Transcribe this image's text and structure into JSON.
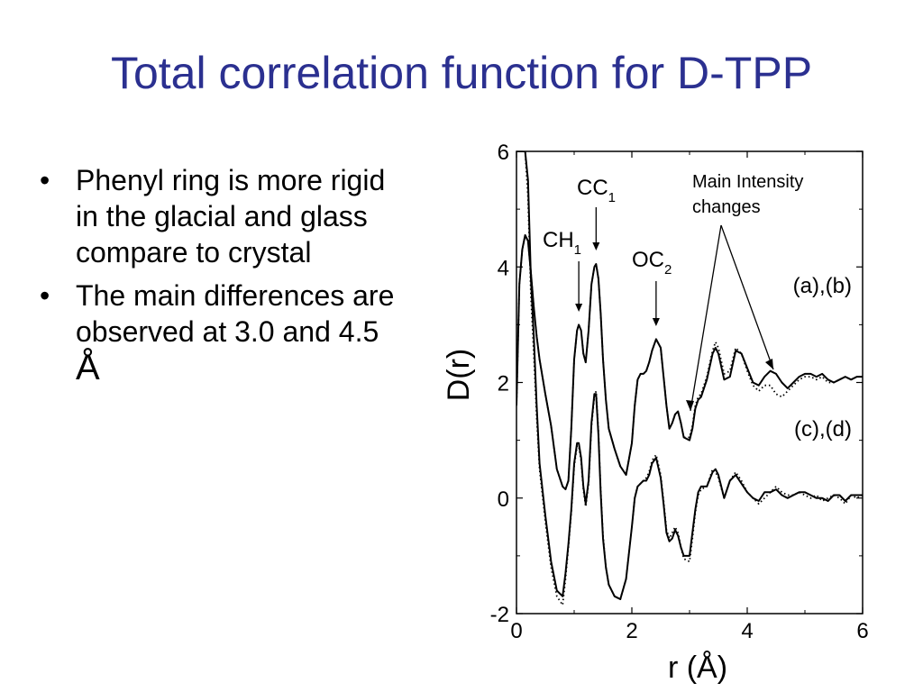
{
  "slide": {
    "title": "Total correlation function for D-TPP",
    "bullet_symbol": "•",
    "bullets": [
      {
        "text": "Phenyl ring is more rigid in the glacial and glass compare to crystal",
        "unit": ""
      },
      {
        "text": "The main differences are observed at 3.0 and 4.5 ",
        "unit": "Å"
      }
    ]
  },
  "chart_data": {
    "type": "line",
    "xlabel": "r (Å)",
    "ylabel": "D(r)",
    "xlim": [
      0,
      6
    ],
    "ylim": [
      -2,
      6
    ],
    "xticks": [
      "0",
      "2",
      "4",
      "6"
    ],
    "yticks": [
      "-2",
      "0",
      "2",
      "4",
      "6"
    ],
    "grid": false,
    "peak_labels": [
      {
        "main": "CC",
        "sub": "1",
        "r": 1.38
      },
      {
        "main": "CH",
        "sub": "1",
        "r": 1.08
      },
      {
        "main": "OC",
        "sub": "2",
        "r": 2.42
      }
    ],
    "annotation": {
      "lines": [
        "Main Intensity",
        "changes"
      ],
      "targets_r": [
        3.0,
        4.5
      ]
    },
    "group_labels": [
      "(a),(b)",
      "(c),(d)"
    ],
    "series": [
      {
        "group": "(a),(b)",
        "style": "solid",
        "x": [
          0.0,
          0.05,
          0.1,
          0.15,
          0.2,
          0.25,
          0.3,
          0.35,
          0.4,
          0.5,
          0.6,
          0.7,
          0.8,
          0.85,
          0.9,
          0.95,
          1.0,
          1.05,
          1.08,
          1.12,
          1.16,
          1.2,
          1.25,
          1.3,
          1.35,
          1.38,
          1.42,
          1.46,
          1.5,
          1.55,
          1.6,
          1.7,
          1.8,
          1.9,
          2.0,
          2.05,
          2.1,
          2.15,
          2.2,
          2.25,
          2.3,
          2.35,
          2.42,
          2.5,
          2.55,
          2.6,
          2.65,
          2.7,
          2.75,
          2.8,
          2.85,
          2.9,
          3.0,
          3.05,
          3.1,
          3.15,
          3.2,
          3.3,
          3.4,
          3.45,
          3.5,
          3.6,
          3.7,
          3.8,
          3.9,
          4.0,
          4.1,
          4.2,
          4.3,
          4.4,
          4.5,
          4.6,
          4.7,
          4.8,
          4.9,
          5.0,
          5.1,
          5.2,
          5.3,
          5.4,
          5.5,
          5.6,
          5.7,
          5.8,
          5.9,
          6.0
        ],
        "y": [
          1.6,
          3.7,
          4.3,
          4.55,
          4.45,
          3.9,
          3.3,
          2.8,
          2.4,
          1.8,
          1.25,
          0.5,
          0.2,
          0.15,
          0.3,
          1.2,
          2.4,
          2.9,
          3.0,
          2.9,
          2.5,
          2.35,
          2.9,
          3.7,
          4.0,
          4.05,
          3.8,
          3.2,
          2.4,
          1.7,
          1.2,
          0.85,
          0.55,
          0.4,
          0.95,
          1.6,
          2.05,
          2.15,
          2.15,
          2.2,
          2.35,
          2.55,
          2.75,
          2.6,
          2.1,
          1.6,
          1.2,
          1.3,
          1.45,
          1.5,
          1.3,
          1.05,
          1.0,
          1.2,
          1.55,
          1.7,
          1.75,
          2.05,
          2.5,
          2.6,
          2.5,
          2.05,
          2.1,
          2.55,
          2.5,
          2.25,
          2.0,
          1.95,
          2.1,
          2.2,
          2.15,
          2.0,
          1.9,
          2.0,
          2.1,
          2.15,
          2.15,
          2.1,
          2.15,
          2.05,
          2.0,
          2.05,
          2.1,
          2.05,
          2.1,
          2.1
        ]
      },
      {
        "group": "(a),(b)",
        "style": "dotted",
        "x": [
          0.0,
          0.05,
          0.1,
          0.15,
          0.2,
          0.25,
          0.3,
          0.35,
          0.4,
          0.5,
          0.6,
          0.7,
          0.8,
          0.85,
          0.9,
          0.95,
          1.0,
          1.05,
          1.08,
          1.12,
          1.16,
          1.2,
          1.25,
          1.3,
          1.35,
          1.38,
          1.42,
          1.46,
          1.5,
          1.55,
          1.6,
          1.7,
          1.8,
          1.9,
          2.0,
          2.05,
          2.1,
          2.15,
          2.2,
          2.25,
          2.3,
          2.35,
          2.42,
          2.5,
          2.55,
          2.6,
          2.65,
          2.7,
          2.75,
          2.8,
          2.85,
          2.9,
          3.0,
          3.05,
          3.1,
          3.15,
          3.2,
          3.3,
          3.4,
          3.45,
          3.5,
          3.6,
          3.7,
          3.8,
          3.9,
          4.0,
          4.1,
          4.2,
          4.3,
          4.4,
          4.5,
          4.6,
          4.7,
          4.8,
          4.9,
          5.0,
          5.1,
          5.2,
          5.3,
          5.4,
          5.5,
          5.6,
          5.7,
          5.8,
          5.9,
          6.0
        ],
        "y": [
          1.6,
          3.7,
          4.3,
          4.55,
          4.45,
          3.9,
          3.3,
          2.8,
          2.4,
          1.8,
          1.25,
          0.5,
          0.2,
          0.15,
          0.3,
          1.2,
          2.4,
          2.9,
          3.0,
          2.9,
          2.5,
          2.35,
          2.9,
          3.7,
          4.0,
          4.05,
          3.8,
          3.2,
          2.4,
          1.7,
          1.2,
          0.85,
          0.55,
          0.4,
          0.95,
          1.6,
          2.05,
          2.15,
          2.15,
          2.2,
          2.35,
          2.55,
          2.75,
          2.6,
          2.1,
          1.6,
          1.2,
          1.3,
          1.45,
          1.5,
          1.3,
          1.05,
          1.05,
          1.25,
          1.6,
          1.75,
          1.8,
          2.1,
          2.55,
          2.7,
          2.6,
          2.15,
          2.2,
          2.6,
          2.5,
          2.2,
          1.95,
          1.85,
          1.95,
          1.95,
          1.8,
          1.75,
          1.85,
          1.95,
          2.05,
          2.1,
          2.1,
          2.05,
          2.1,
          2.0,
          2.0,
          2.05,
          2.1,
          2.05,
          2.1,
          2.1
        ]
      },
      {
        "group": "(c),(d)",
        "style": "solid",
        "x": [
          0.0,
          0.05,
          0.1,
          0.15,
          0.2,
          0.25,
          0.3,
          0.35,
          0.4,
          0.5,
          0.6,
          0.7,
          0.8,
          0.85,
          0.9,
          0.95,
          1.0,
          1.05,
          1.08,
          1.12,
          1.16,
          1.2,
          1.25,
          1.3,
          1.35,
          1.38,
          1.42,
          1.46,
          1.5,
          1.55,
          1.6,
          1.7,
          1.8,
          1.9,
          2.0,
          2.05,
          2.1,
          2.15,
          2.2,
          2.25,
          2.3,
          2.35,
          2.42,
          2.5,
          2.55,
          2.6,
          2.65,
          2.7,
          2.75,
          2.8,
          2.85,
          2.9,
          3.0,
          3.05,
          3.1,
          3.15,
          3.2,
          3.3,
          3.4,
          3.45,
          3.5,
          3.6,
          3.7,
          3.8,
          3.9,
          4.0,
          4.1,
          4.2,
          4.3,
          4.4,
          4.5,
          4.6,
          4.7,
          4.8,
          4.9,
          5.0,
          5.1,
          5.2,
          5.3,
          5.4,
          5.5,
          5.6,
          5.7,
          5.8,
          5.9,
          6.0
        ],
        "y": [
          6,
          6,
          6,
          6,
          5.5,
          3.8,
          2.8,
          1.6,
          0.6,
          -0.3,
          -1.1,
          -1.6,
          -1.7,
          -1.3,
          -0.8,
          -0.2,
          0.6,
          0.95,
          0.95,
          0.7,
          0.2,
          -0.1,
          0.3,
          1.3,
          1.8,
          1.8,
          1.1,
          0.1,
          -0.7,
          -1.2,
          -1.5,
          -1.7,
          -1.75,
          -1.4,
          -0.5,
          0.0,
          0.2,
          0.25,
          0.3,
          0.3,
          0.4,
          0.6,
          0.7,
          0.35,
          -0.1,
          -0.6,
          -0.75,
          -0.7,
          -0.55,
          -0.65,
          -0.85,
          -1.0,
          -1.0,
          -0.6,
          -0.2,
          0.1,
          0.2,
          0.2,
          0.45,
          0.5,
          0.4,
          0.0,
          0.3,
          0.4,
          0.25,
          0.1,
          0.0,
          -0.05,
          0.1,
          0.1,
          0.15,
          0.05,
          0.0,
          0.05,
          0.1,
          0.1,
          0.05,
          0.0,
          0.0,
          -0.05,
          0.05,
          0.05,
          -0.05,
          0.05,
          0.05,
          0.05
        ]
      },
      {
        "group": "(c),(d)",
        "style": "dotted",
        "x": [
          0.0,
          0.05,
          0.1,
          0.15,
          0.2,
          0.25,
          0.3,
          0.35,
          0.4,
          0.5,
          0.6,
          0.7,
          0.8,
          0.85,
          0.9,
          0.95,
          1.0,
          1.05,
          1.08,
          1.12,
          1.16,
          1.2,
          1.25,
          1.3,
          1.35,
          1.38,
          1.42,
          1.46,
          1.5,
          1.55,
          1.6,
          1.7,
          1.8,
          1.9,
          2.0,
          2.05,
          2.1,
          2.15,
          2.2,
          2.25,
          2.3,
          2.35,
          2.42,
          2.5,
          2.55,
          2.6,
          2.65,
          2.7,
          2.75,
          2.8,
          2.85,
          2.9,
          3.0,
          3.05,
          3.1,
          3.15,
          3.2,
          3.3,
          3.4,
          3.45,
          3.5,
          3.6,
          3.7,
          3.8,
          3.9,
          4.0,
          4.1,
          4.2,
          4.3,
          4.4,
          4.5,
          4.6,
          4.7,
          4.8,
          4.9,
          5.0,
          5.1,
          5.2,
          5.3,
          5.4,
          5.5,
          5.6,
          5.7,
          5.8,
          5.9,
          6.0
        ],
        "y": [
          6,
          6,
          6,
          6,
          5.2,
          3.5,
          2.5,
          1.4,
          0.5,
          -0.4,
          -1.2,
          -1.7,
          -1.85,
          -1.4,
          -0.85,
          -0.25,
          0.55,
          0.9,
          0.9,
          0.65,
          0.15,
          -0.15,
          0.25,
          1.25,
          1.75,
          1.85,
          1.15,
          0.15,
          -0.65,
          -1.2,
          -1.5,
          -1.7,
          -1.75,
          -1.4,
          -0.5,
          0.0,
          0.2,
          0.25,
          0.3,
          0.35,
          0.45,
          0.65,
          0.75,
          0.4,
          -0.05,
          -0.55,
          -0.7,
          -0.6,
          -0.5,
          -0.6,
          -0.85,
          -1.05,
          -1.1,
          -0.7,
          -0.25,
          0.05,
          0.15,
          0.2,
          0.5,
          0.45,
          0.35,
          0.0,
          0.3,
          0.45,
          0.3,
          0.1,
          0.0,
          -0.1,
          0.0,
          0.1,
          0.2,
          0.1,
          0.05,
          0.05,
          0.1,
          0.05,
          0.0,
          0.05,
          -0.05,
          0.0,
          0.05,
          0.0,
          -0.1,
          0.05,
          0.0,
          0.05
        ]
      }
    ]
  }
}
